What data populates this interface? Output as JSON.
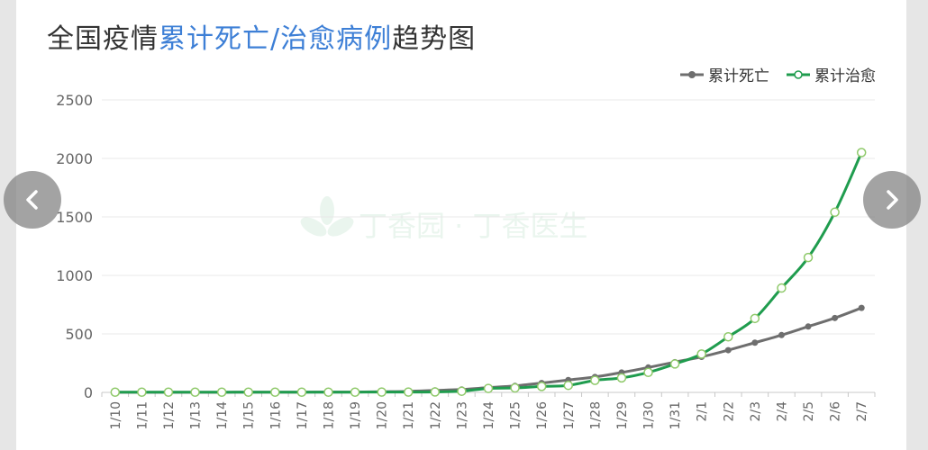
{
  "title": {
    "p1": "全国疫情",
    "p2": "累计死亡/治愈病例",
    "p3": "趋势图"
  },
  "watermark": "丁香园 · 丁香医生",
  "nav": {
    "prev_icon": "chevron-left-icon",
    "next_icon": "chevron-right-icon"
  },
  "chart_data": {
    "type": "line",
    "x": [
      "1/10",
      "1/11",
      "1/12",
      "1/13",
      "1/14",
      "1/15",
      "1/16",
      "1/17",
      "1/18",
      "1/19",
      "1/20",
      "1/21",
      "1/22",
      "1/23",
      "1/24",
      "1/25",
      "1/26",
      "1/27",
      "1/28",
      "1/29",
      "1/30",
      "1/31",
      "2/1",
      "2/2",
      "2/3",
      "2/4",
      "2/5",
      "2/6",
      "2/7"
    ],
    "series": [
      {
        "name": "累计死亡",
        "color": "#6e6e6e",
        "marker": "filled",
        "values": [
          1,
          1,
          1,
          1,
          1,
          2,
          2,
          2,
          3,
          3,
          6,
          9,
          17,
          25,
          41,
          56,
          80,
          106,
          132,
          170,
          213,
          259,
          304,
          361,
          425,
          490,
          563,
          636,
          722
        ]
      },
      {
        "name": "累计治愈",
        "color": "#1f9c4e",
        "marker": "hollow",
        "values": [
          2,
          2,
          2,
          2,
          2,
          2,
          2,
          2,
          2,
          2,
          3,
          3,
          4,
          10,
          34,
          38,
          51,
          60,
          103,
          124,
          171,
          243,
          328,
          475,
          632,
          892,
          1153,
          1540,
          2050
        ]
      }
    ],
    "ylim": [
      0,
      2500
    ],
    "yticks": [
      0,
      500,
      1000,
      1500,
      2000,
      2500
    ],
    "grid": true,
    "legend_position": "top-right",
    "xlabel": "",
    "ylabel": ""
  }
}
